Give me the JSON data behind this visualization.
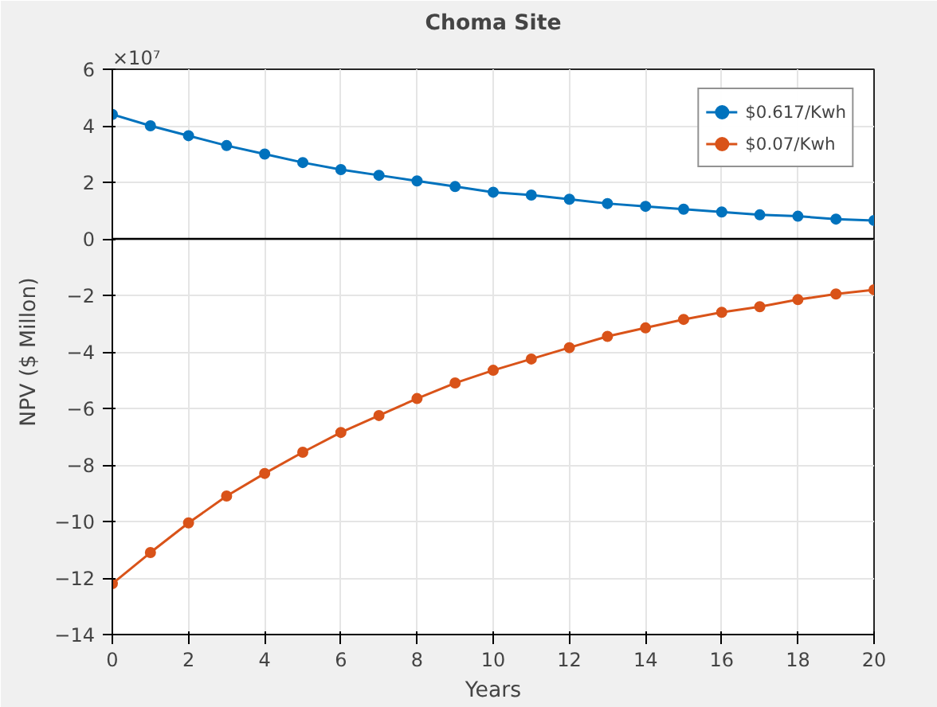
{
  "chart_data": {
    "type": "line",
    "title": "Choma Site",
    "xlabel": "Years",
    "ylabel": "NPV ($ Millon)",
    "annotations": [
      "×10⁷"
    ],
    "x": [
      0,
      1,
      2,
      3,
      4,
      5,
      6,
      7,
      8,
      9,
      10,
      11,
      12,
      13,
      14,
      15,
      16,
      17,
      18,
      19,
      20
    ],
    "series": [
      {
        "name": "$0.617/Kwh",
        "color": "#0072bd",
        "values": [
          4.4,
          4.0,
          3.65,
          3.3,
          3.0,
          2.7,
          2.45,
          2.25,
          2.05,
          1.85,
          1.65,
          1.55,
          1.4,
          1.25,
          1.15,
          1.05,
          0.95,
          0.85,
          0.8,
          0.7,
          0.65
        ]
      },
      {
        "name": "$0.07/Kwh",
        "color": "#d95319",
        "values": [
          -12.2,
          -11.1,
          -10.05,
          -9.1,
          -8.3,
          -7.55,
          -6.85,
          -6.25,
          -5.65,
          -5.1,
          -4.65,
          -4.25,
          -3.85,
          -3.45,
          -3.15,
          -2.85,
          -2.6,
          -2.4,
          -2.15,
          -1.95,
          -1.8
        ]
      }
    ],
    "xlim": [
      0,
      20
    ],
    "xticks": [
      0,
      2,
      4,
      6,
      8,
      10,
      12,
      14,
      16,
      18,
      20
    ],
    "ylim": [
      -14,
      6
    ],
    "yticks": [
      -14,
      -12,
      -10,
      -8,
      -6,
      -4,
      -2,
      0,
      2,
      4,
      6
    ],
    "ref_lines": [
      {
        "axis": "y",
        "value": 0,
        "color": "#000000"
      }
    ],
    "grid": true,
    "legend": "top right",
    "marker": "circle",
    "line_style": "solid"
  }
}
